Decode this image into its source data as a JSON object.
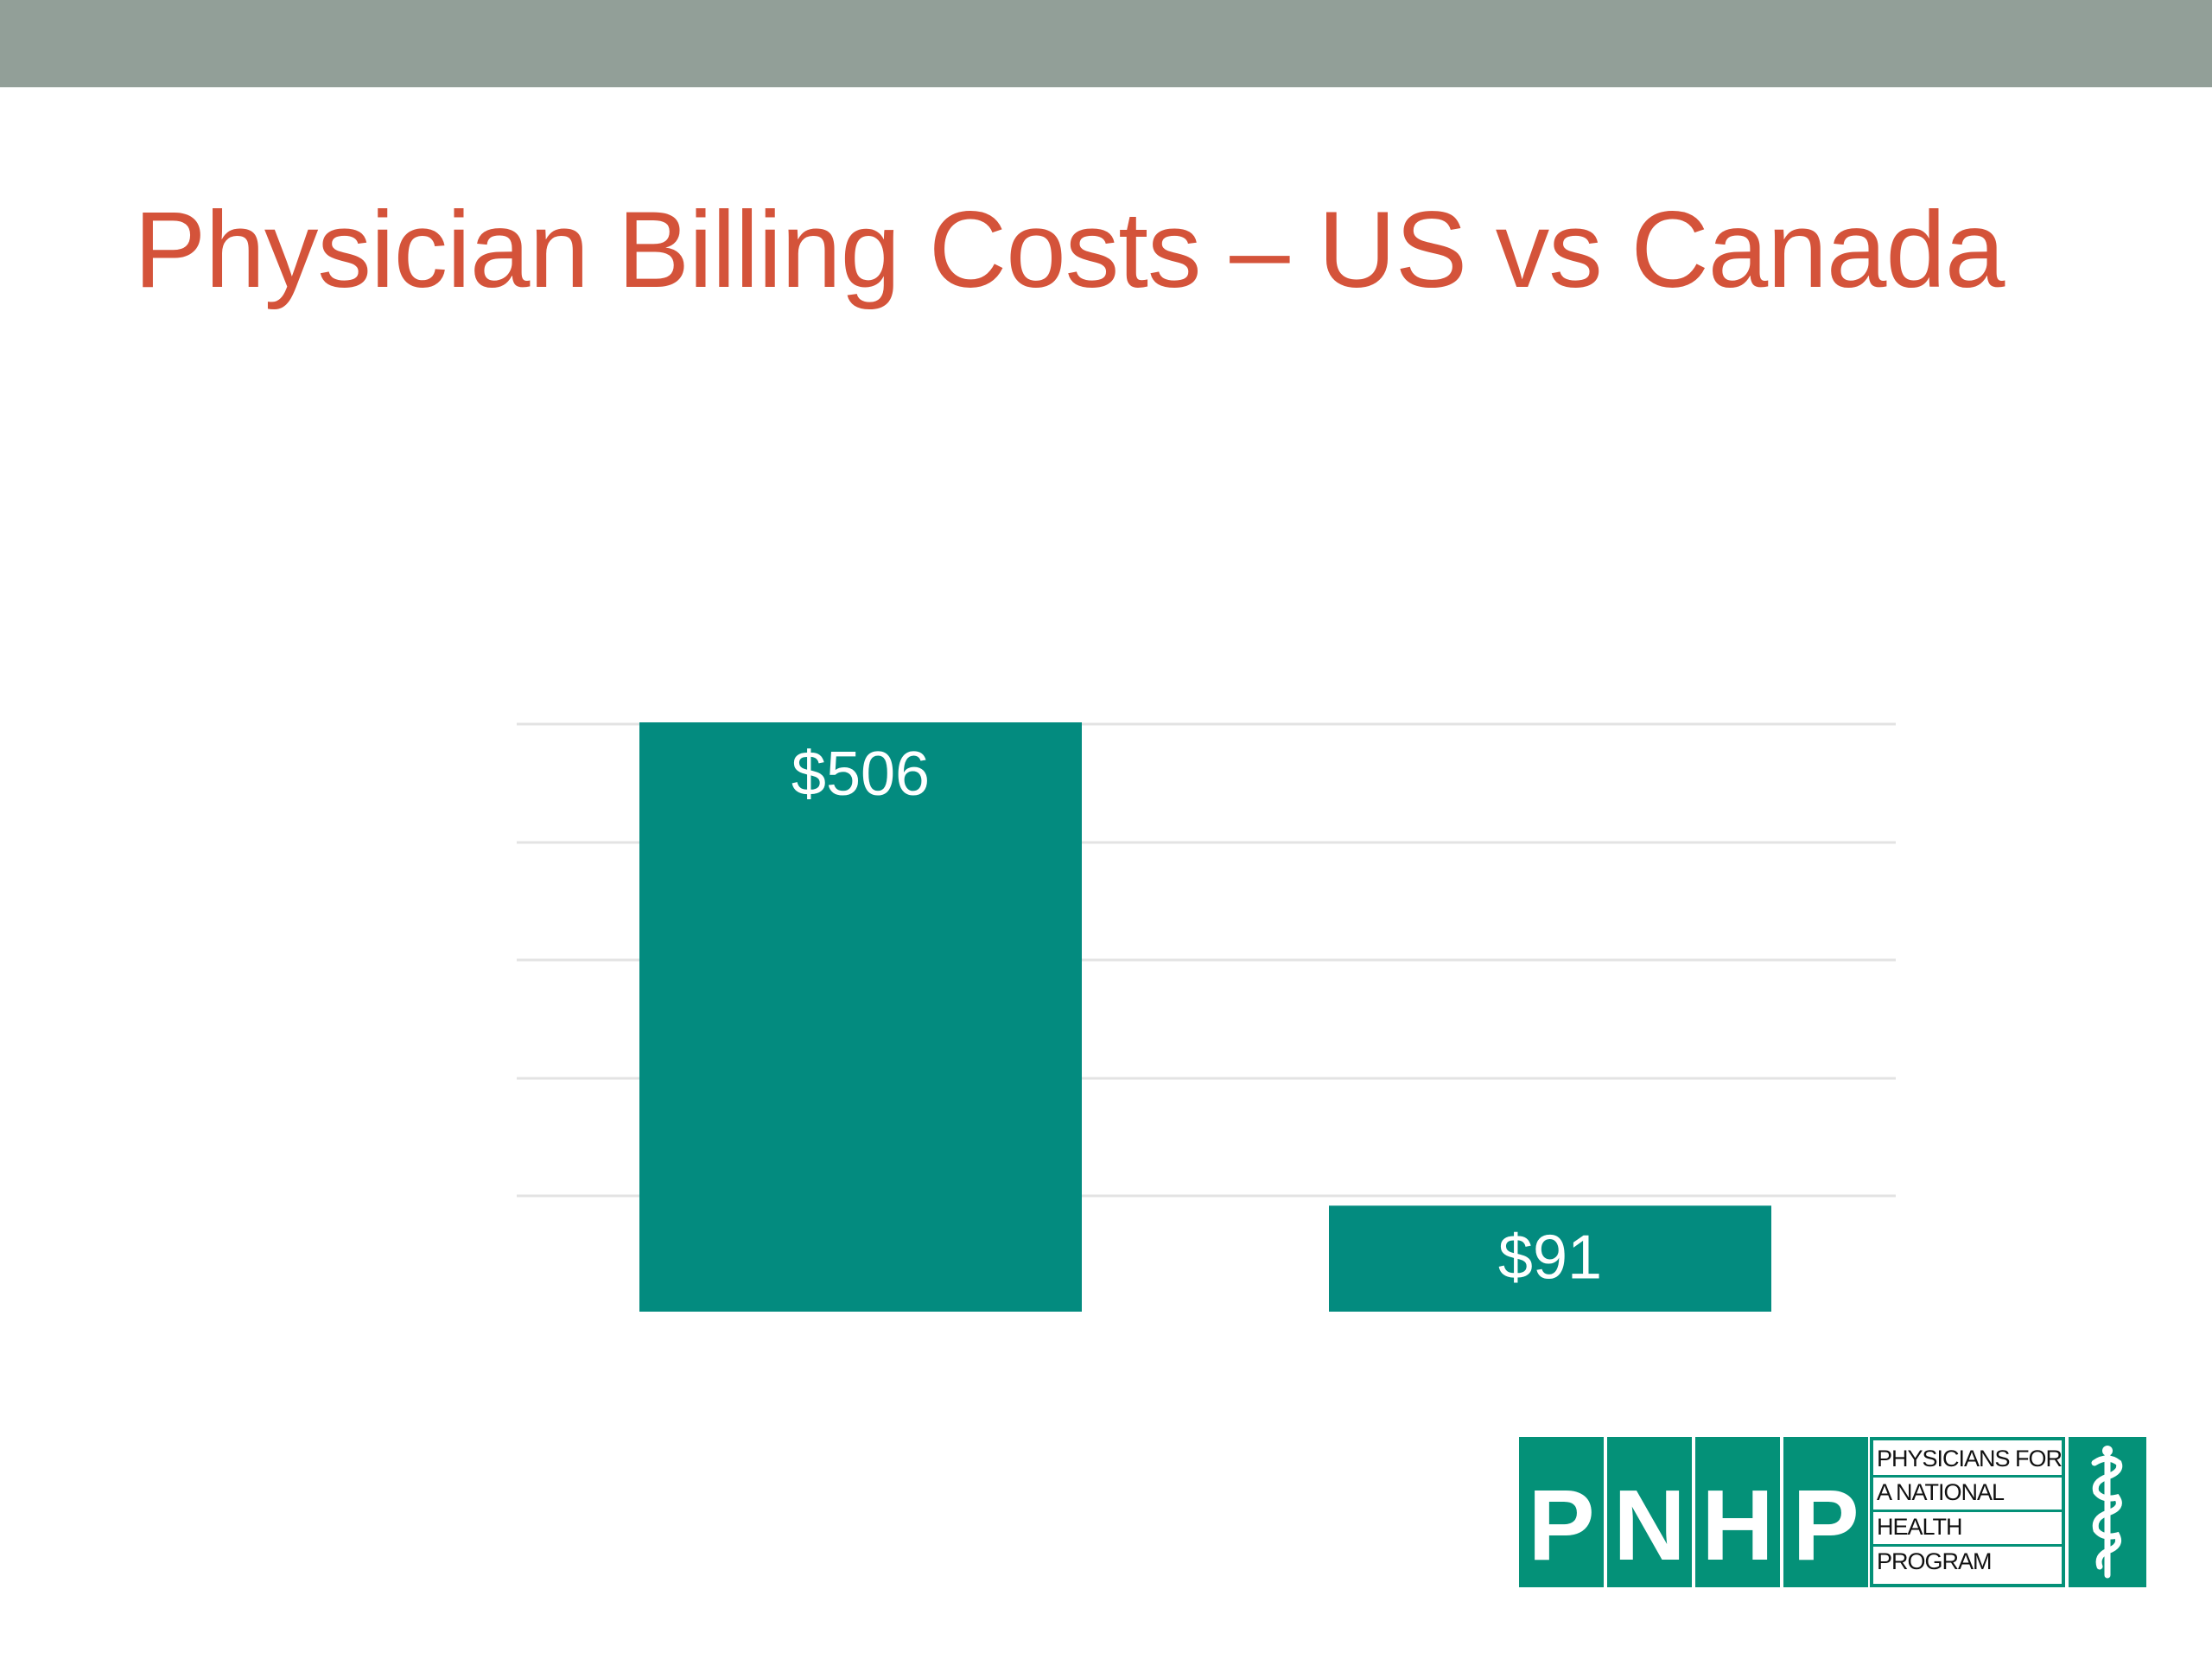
{
  "slide": {
    "title": "Physician Billing Costs – US vs Canada"
  },
  "colors": {
    "top_band": "#929f98",
    "title": "#d4533a",
    "bar": "#038b7f",
    "grid": "#e3e3e3",
    "logo": "#049178"
  },
  "chart_data": {
    "type": "bar",
    "title": "",
    "categories": [
      "",
      ""
    ],
    "values": [
      506,
      91
    ],
    "data_labels": [
      "$506",
      "$91"
    ],
    "xlabel": "",
    "ylabel": "",
    "ylim": [
      0,
      506
    ],
    "grid": true,
    "legend": "none"
  },
  "logo": {
    "letters": [
      "P",
      "N",
      "H",
      "P"
    ],
    "text_lines": [
      "PHYSICIANS FOR",
      "A NATIONAL",
      "HEALTH",
      "PROGRAM"
    ],
    "emblem_icon": "caduceus-icon"
  }
}
